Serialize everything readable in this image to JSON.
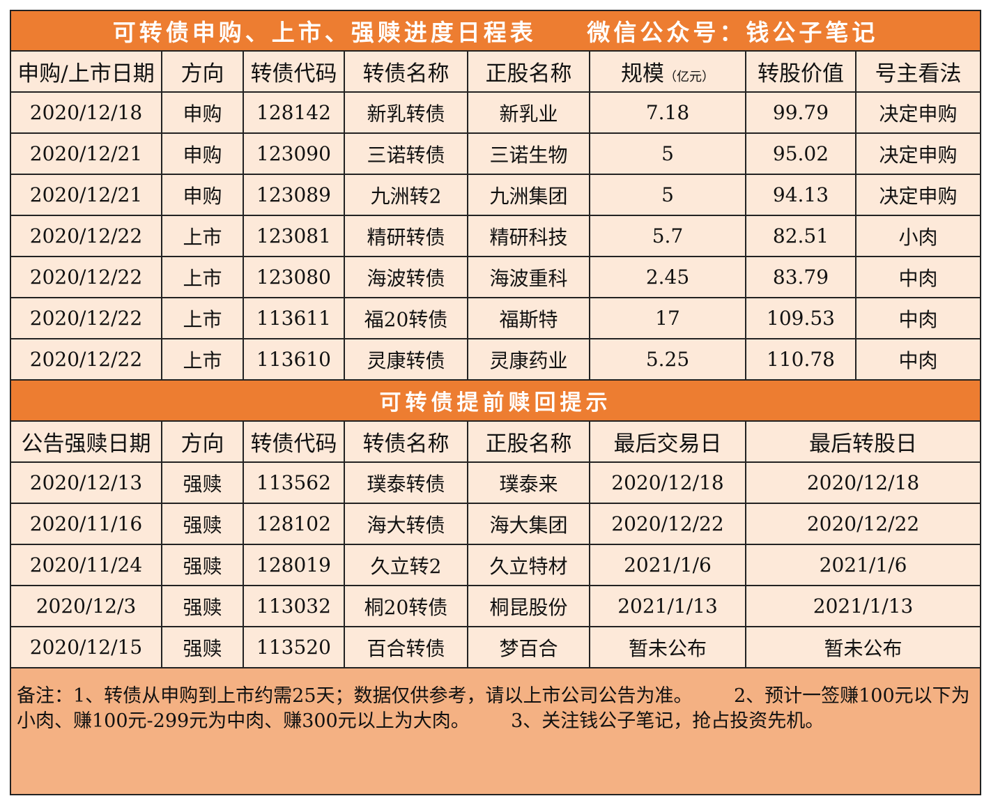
{
  "title": {
    "main": "可转债申购、上市、强赎进度日程表",
    "wechat": "微信公众号：钱公子笔记"
  },
  "schedule": {
    "headers": {
      "date": "申购/上市日期",
      "direction": "方向",
      "code": "转债代码",
      "name": "转债名称",
      "stock": "正股名称",
      "scale": "规模",
      "scale_unit": "（亿元）",
      "value": "转股价值",
      "opinion": "号主看法"
    },
    "rows": [
      {
        "date": "2020/12/18",
        "direction": "申购",
        "code": "128142",
        "name": "新乳转债",
        "stock": "新乳业",
        "scale": "7.18",
        "value": "99.79",
        "opinion": "决定申购"
      },
      {
        "date": "2020/12/21",
        "direction": "申购",
        "code": "123090",
        "name": "三诺转债",
        "stock": "三诺生物",
        "scale": "5",
        "value": "95.02",
        "opinion": "决定申购"
      },
      {
        "date": "2020/12/21",
        "direction": "申购",
        "code": "123089",
        "name": "九洲转2",
        "stock": "九洲集团",
        "scale": "5",
        "value": "94.13",
        "opinion": "决定申购"
      },
      {
        "date": "2020/12/22",
        "direction": "上市",
        "code": "123081",
        "name": "精研转债",
        "stock": "精研科技",
        "scale": "5.7",
        "value": "82.51",
        "opinion": "小肉"
      },
      {
        "date": "2020/12/22",
        "direction": "上市",
        "code": "123080",
        "name": "海波转债",
        "stock": "海波重科",
        "scale": "2.45",
        "value": "83.79",
        "opinion": "中肉"
      },
      {
        "date": "2020/12/22",
        "direction": "上市",
        "code": "113611",
        "name": "福20转债",
        "stock": "福斯特",
        "scale": "17",
        "value": "109.53",
        "opinion": "中肉"
      },
      {
        "date": "2020/12/22",
        "direction": "上市",
        "code": "113610",
        "name": "灵康转债",
        "stock": "灵康药业",
        "scale": "5.25",
        "value": "110.78",
        "opinion": "中肉"
      }
    ]
  },
  "redemption": {
    "title": "可转债提前赎回提示",
    "headers": {
      "date": "公告强赎日期",
      "direction": "方向",
      "code": "转债代码",
      "name": "转债名称",
      "stock": "正股名称",
      "last_trade": "最后交易日",
      "last_convert": "最后转股日"
    },
    "rows": [
      {
        "date": "2020/12/13",
        "direction": "强赎",
        "code": "113562",
        "name": "璞泰转债",
        "stock": "璞泰来",
        "last_trade": "2020/12/18",
        "last_convert": "2020/12/18"
      },
      {
        "date": "2020/11/16",
        "direction": "强赎",
        "code": "128102",
        "name": "海大转债",
        "stock": "海大集团",
        "last_trade": "2020/12/22",
        "last_convert": "2020/12/22"
      },
      {
        "date": "2020/11/24",
        "direction": "强赎",
        "code": "128019",
        "name": "久立转2",
        "stock": "久立特材",
        "last_trade": "2021/1/6",
        "last_convert": "2021/1/6"
      },
      {
        "date": "2020/12/3",
        "direction": "强赎",
        "code": "113032",
        "name": "桐20转债",
        "stock": "桐昆股份",
        "last_trade": "2021/1/13",
        "last_convert": "2021/1/13"
      },
      {
        "date": "2020/12/15",
        "direction": "强赎",
        "code": "113520",
        "name": "百合转债",
        "stock": "梦百合",
        "last_trade": "暂未公布",
        "last_convert": "暂未公布"
      }
    ]
  },
  "note": {
    "part1": "备注：1、转债从申购到上市约需25天；数据仅供参考，请以上市公司公告为准。",
    "part2": "2、预计一签赚100元以下为小肉、赚100元-299元为中肉、赚300元以上为大肉。",
    "part3": "3、关注钱公子笔记，抢占投资先机。"
  },
  "colors": {
    "header_orange": "#ed7d31",
    "cell_bg": "#fde9d9",
    "note_bg": "#f4b183"
  }
}
